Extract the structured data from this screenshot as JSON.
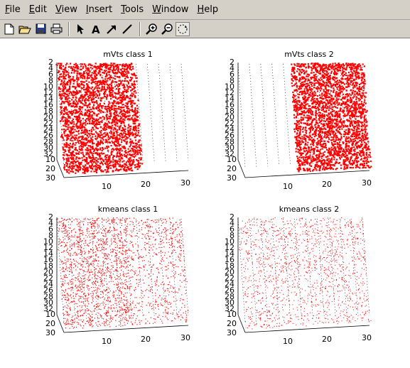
{
  "menubar": {
    "items": [
      "File",
      "Edit",
      "View",
      "Insert",
      "Tools",
      "Window",
      "Help"
    ]
  },
  "toolbar": {
    "buttons": [
      "new-file-icon",
      "open-folder-icon",
      "save-icon",
      "print-icon",
      "select-arrow-icon",
      "text-insert-icon",
      "arrow-insert-icon",
      "line-insert-icon",
      "zoom-in-icon",
      "zoom-out-icon",
      "rotate-3d-icon"
    ]
  },
  "plots": [
    {
      "title": "mVts class 1",
      "density": "solid-left",
      "yticks": [
        "2",
        "4",
        "6",
        "8",
        "10",
        "12",
        "14",
        "16",
        "18",
        "20",
        "22",
        "24",
        "26",
        "28",
        "30",
        "32"
      ],
      "zticks": [
        "10",
        "20",
        "30"
      ],
      "xticks": [
        "10",
        "20",
        "30"
      ]
    },
    {
      "title": "mVts class 2",
      "density": "solid-right",
      "yticks": [
        "2",
        "4",
        "6",
        "8",
        "10",
        "12",
        "14",
        "16",
        "18",
        "20",
        "22",
        "24",
        "26",
        "28",
        "30",
        "32"
      ],
      "zticks": [
        "10",
        "20",
        "30"
      ],
      "xticks": [
        "10",
        "20",
        "30"
      ]
    },
    {
      "title": "kmeans class 1",
      "density": "scatter-dense",
      "yticks": [
        "2",
        "4",
        "6",
        "8",
        "10",
        "12",
        "14",
        "16",
        "18",
        "20",
        "22",
        "24",
        "26",
        "28",
        "30",
        "32"
      ],
      "zticks": [
        "10",
        "20",
        "30"
      ],
      "xticks": [
        "10",
        "20",
        "30"
      ]
    },
    {
      "title": "kmeans class 2",
      "density": "scatter-sparse",
      "yticks": [
        "2",
        "4",
        "6",
        "8",
        "10",
        "12",
        "14",
        "16",
        "18",
        "20",
        "22",
        "24",
        "26",
        "28",
        "30",
        "32"
      ],
      "zticks": [
        "10",
        "20",
        "30"
      ],
      "xticks": [
        "10",
        "20",
        "30"
      ]
    }
  ],
  "colors": {
    "marker": "#ff0000",
    "grid": "#000000",
    "window": "#d4d0c8"
  }
}
